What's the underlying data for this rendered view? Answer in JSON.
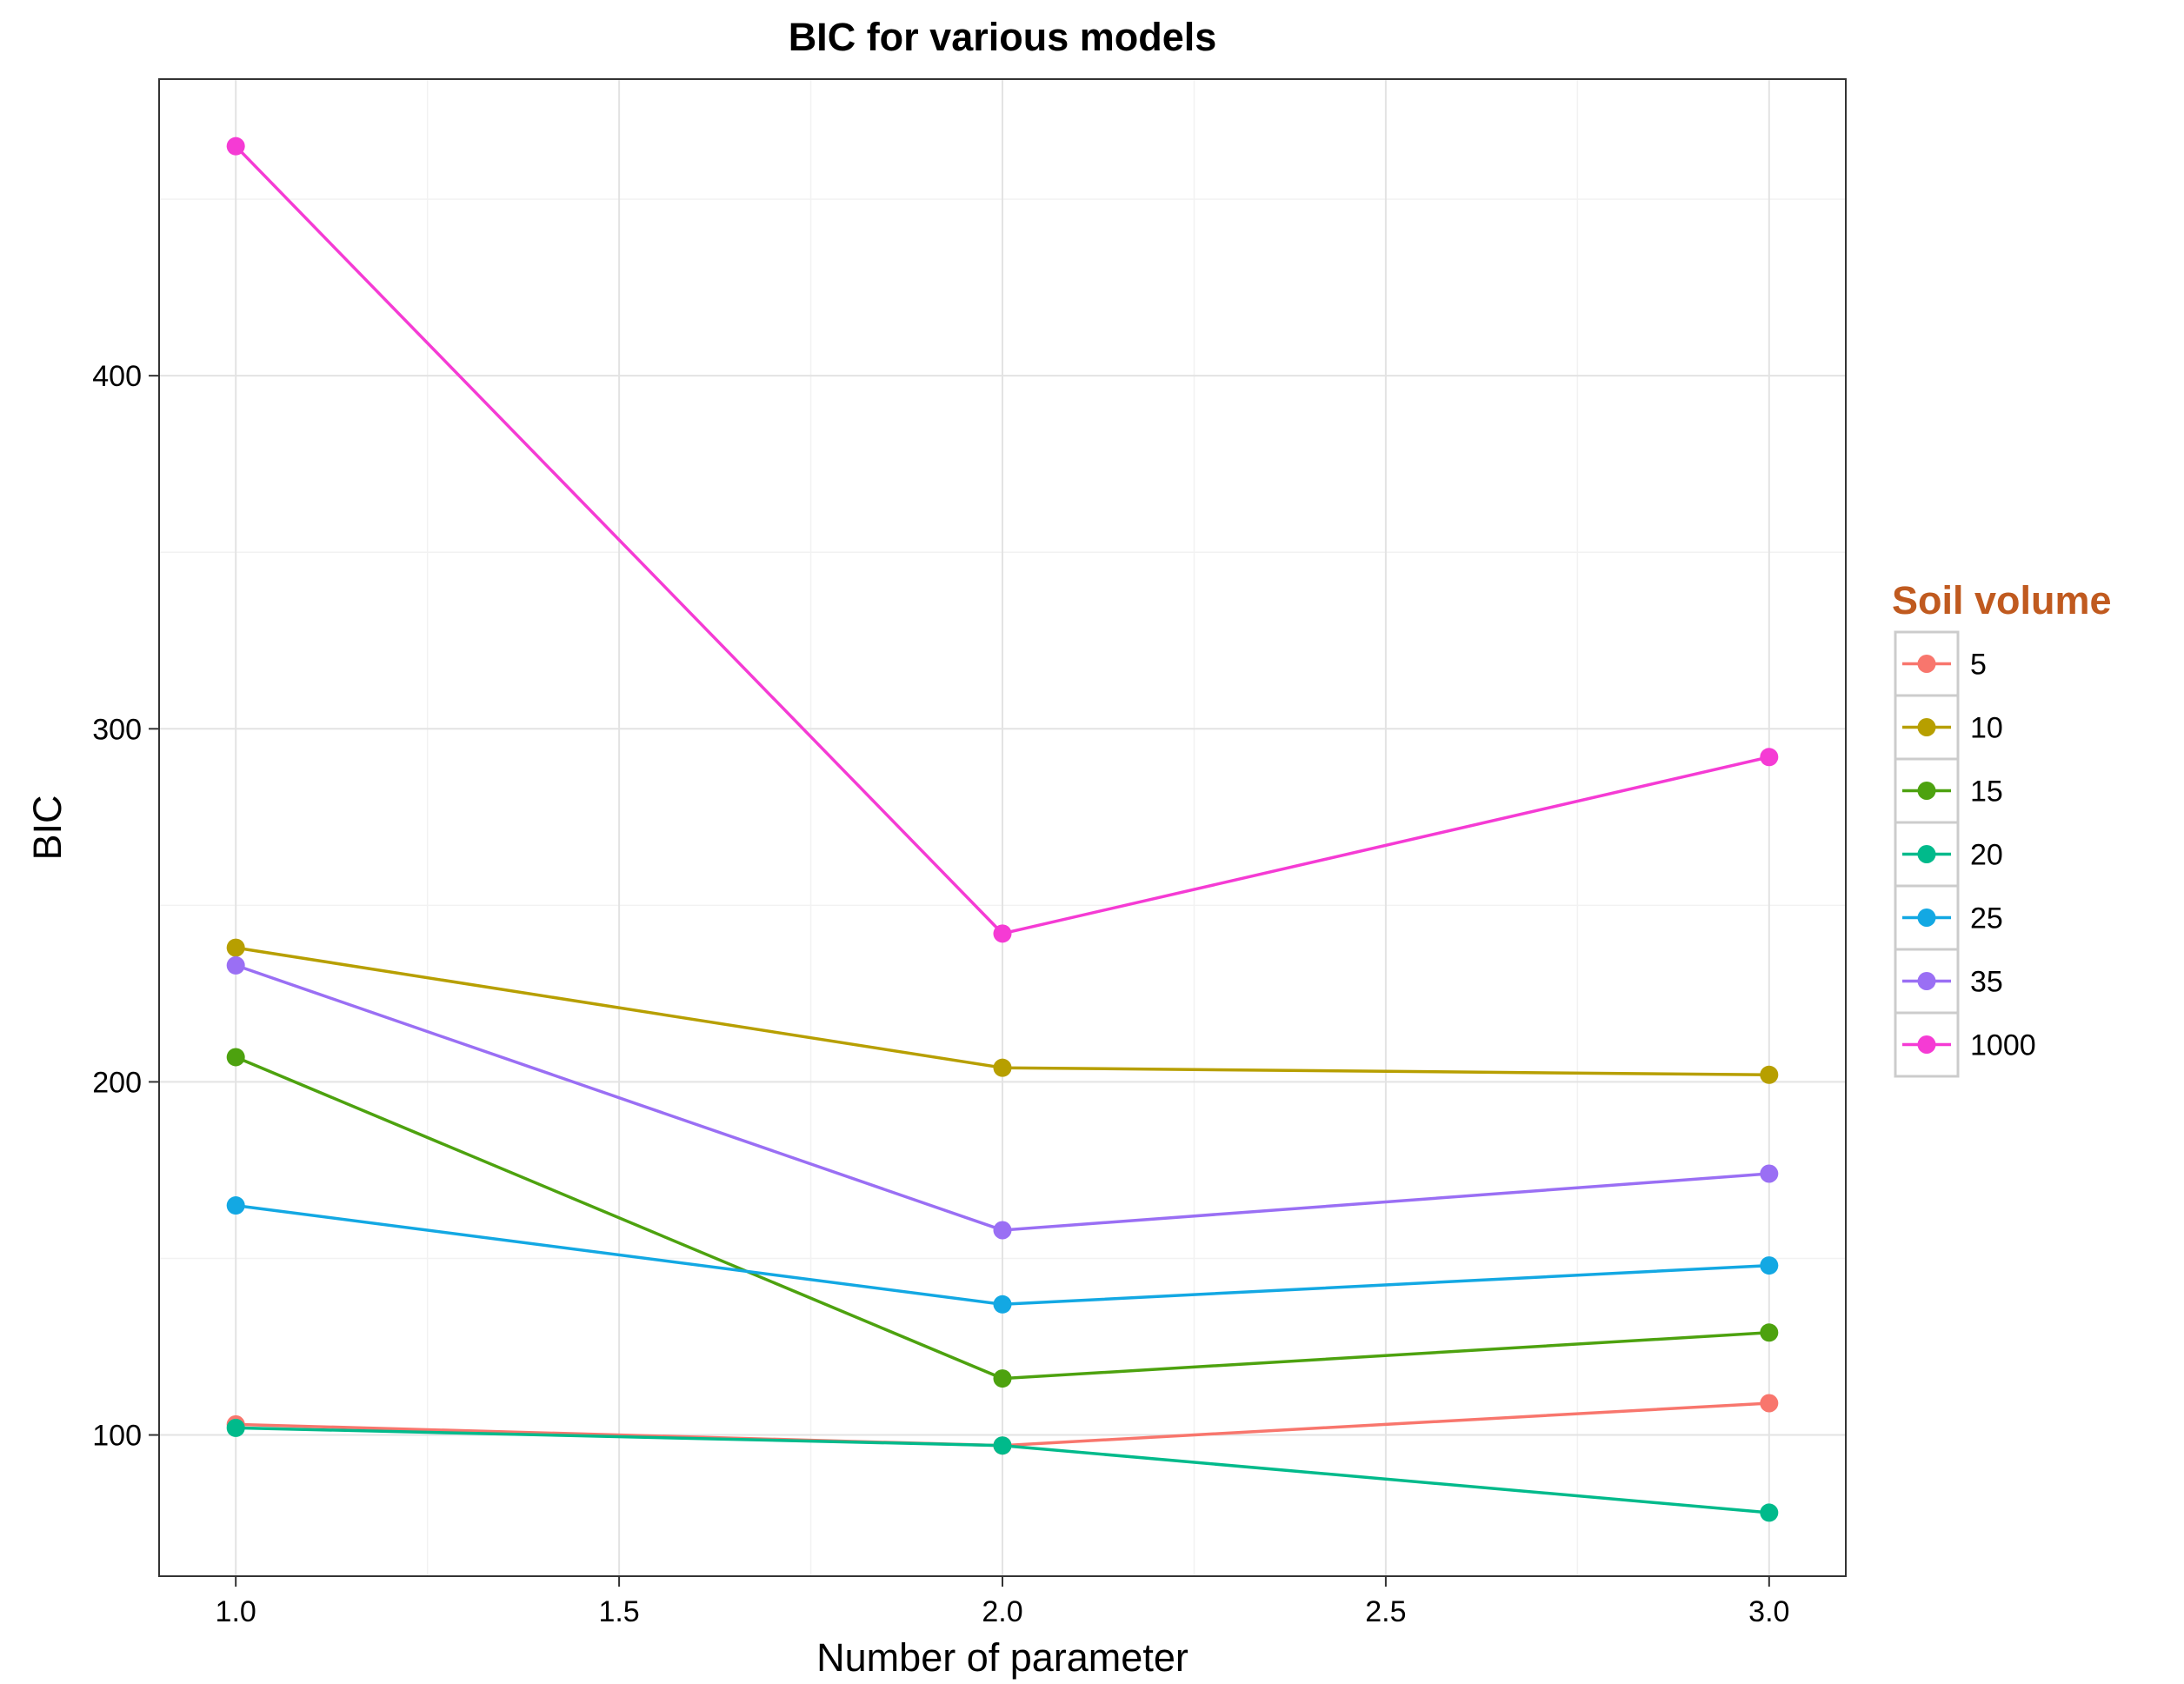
{
  "chart_data": {
    "type": "line",
    "title": "BIC for various models",
    "xlabel": "Number of parameter",
    "ylabel": "BIC",
    "x": [
      1,
      2,
      3
    ],
    "xlim": [
      0.9,
      3.1
    ],
    "ylim": [
      60,
      484
    ],
    "xticks": [
      1.0,
      1.5,
      2.0,
      2.5,
      3.0
    ],
    "xtick_labels": [
      "1.0",
      "1.5",
      "2.0",
      "2.5",
      "3.0"
    ],
    "yticks": [
      100,
      200,
      300,
      400
    ],
    "ytick_labels": [
      "100",
      "200",
      "300",
      "400"
    ],
    "grid": true,
    "legend": {
      "title": "Soil volume",
      "title_color": "#c05a1f",
      "position": "right"
    },
    "series": [
      {
        "name": "5",
        "color": "#F8766D",
        "values": [
          103,
          97,
          109
        ]
      },
      {
        "name": "10",
        "color": "#B79F00",
        "values": [
          238,
          204,
          202
        ]
      },
      {
        "name": "15",
        "color": "#4DA20F",
        "values": [
          207,
          116,
          129
        ]
      },
      {
        "name": "20",
        "color": "#00BA8B",
        "values": [
          102,
          97,
          78
        ]
      },
      {
        "name": "25",
        "color": "#13A8E3",
        "values": [
          165,
          137,
          148
        ]
      },
      {
        "name": "35",
        "color": "#9A6FF4",
        "values": [
          233,
          158,
          174
        ]
      },
      {
        "name": "1000",
        "color": "#F53BD4",
        "values": [
          465,
          242,
          292
        ]
      }
    ]
  }
}
